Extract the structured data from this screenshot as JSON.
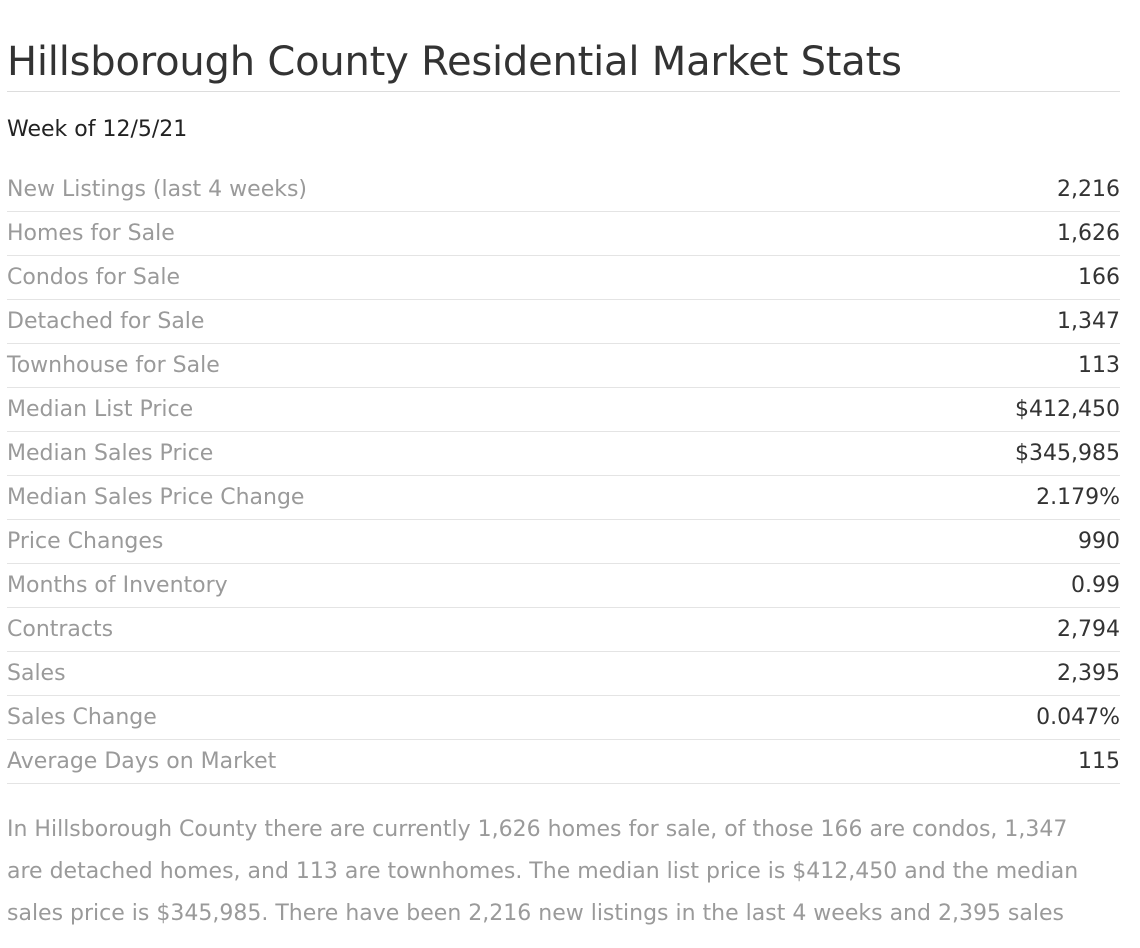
{
  "title": "Hillsborough County Residential Market Stats",
  "week_label": "Week of 12/5/21",
  "stats": [
    {
      "label": "New Listings (last 4 weeks)",
      "value": "2,216"
    },
    {
      "label": "Homes for Sale",
      "value": "1,626"
    },
    {
      "label": "Condos for Sale",
      "value": "166"
    },
    {
      "label": "Detached for Sale",
      "value": "1,347"
    },
    {
      "label": "Townhouse for Sale",
      "value": "113"
    },
    {
      "label": "Median List Price",
      "value": "$412,450"
    },
    {
      "label": "Median Sales Price",
      "value": "$345,985"
    },
    {
      "label": "Median Sales Price Change",
      "value": "2.179%"
    },
    {
      "label": "Price Changes",
      "value": "990"
    },
    {
      "label": "Months of Inventory",
      "value": "0.99"
    },
    {
      "label": "Contracts",
      "value": "2,794"
    },
    {
      "label": "Sales",
      "value": "2,395"
    },
    {
      "label": "Sales Change",
      "value": "0.047%"
    },
    {
      "label": "Average Days on Market",
      "value": "115"
    }
  ],
  "summary": "In Hillsborough County there are currently 1,626 homes for sale, of those 166 are condos, 1,347 are detached homes, and 113 are townhomes. The median list price is $412,450 and the median sales price is $345,985. There have been 2,216 new listings in the last 4 weeks and 2,395 sales"
}
